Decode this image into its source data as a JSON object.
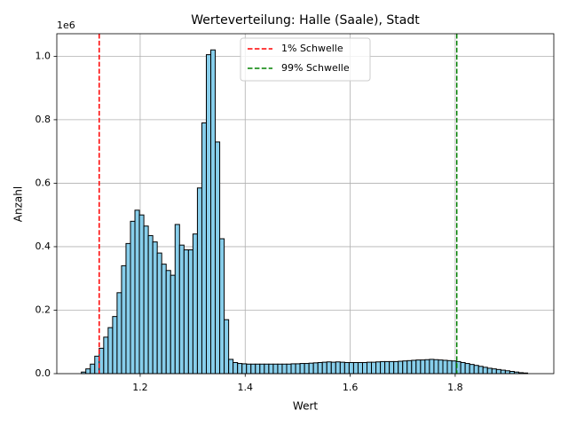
{
  "chart_data": {
    "type": "histogram",
    "title": "Werteverteilung: Halle (Saale), Stadt",
    "x_label": "Wert",
    "y_label": "Anzahl",
    "y_offset_label": "1e6",
    "bins": [
      1.088,
      1.0965,
      1.105,
      1.1135,
      1.122,
      1.1305,
      1.139,
      1.1475,
      1.156,
      1.1645,
      1.173,
      1.1815,
      1.19,
      1.1985,
      1.207,
      1.2155,
      1.224,
      1.2325,
      1.241,
      1.2495,
      1.258,
      1.2665,
      1.275,
      1.2835,
      1.292,
      1.3005,
      1.309,
      1.3175,
      1.326,
      1.3345,
      1.343,
      1.3515,
      1.36,
      1.3685,
      1.377,
      1.3855,
      1.394,
      1.4025,
      1.411,
      1.4195,
      1.428,
      1.4365,
      1.445,
      1.4535,
      1.462,
      1.4705,
      1.479,
      1.4875,
      1.496,
      1.5045,
      1.513,
      1.5215,
      1.53,
      1.5385,
      1.547,
      1.5555,
      1.564,
      1.5725,
      1.581,
      1.5895,
      1.598,
      1.6065,
      1.615,
      1.6235,
      1.632,
      1.6405,
      1.649,
      1.6575,
      1.666,
      1.6745,
      1.683,
      1.6915,
      1.7,
      1.7085,
      1.717,
      1.7255,
      1.734,
      1.7425,
      1.751,
      1.7595,
      1.768,
      1.7765,
      1.785,
      1.7935,
      1.802,
      1.8105,
      1.819,
      1.8275,
      1.836,
      1.8445,
      1.853,
      1.8615,
      1.87,
      1.8785,
      1.887,
      1.8955,
      1.904,
      1.9125,
      1.921,
      1.9295,
      1.938
    ],
    "values": [
      5000,
      15000,
      30000,
      55000,
      80000,
      115000,
      145000,
      180000,
      255000,
      340000,
      410000,
      480000,
      515000,
      500000,
      465000,
      435000,
      415000,
      380000,
      345000,
      325000,
      310000,
      470000,
      405000,
      390000,
      390000,
      440000,
      585000,
      790000,
      1005000,
      1020000,
      730000,
      425000,
      170000,
      45000,
      35000,
      32000,
      31000,
      30000,
      30000,
      30000,
      30000,
      30000,
      30000,
      30000,
      30000,
      30000,
      30000,
      31000,
      31000,
      32000,
      32000,
      33000,
      34000,
      35000,
      36000,
      37000,
      36000,
      37000,
      36000,
      35000,
      35000,
      35000,
      35000,
      35000,
      36000,
      36000,
      37000,
      38000,
      38000,
      38000,
      38000,
      39000,
      40000,
      41000,
      42000,
      43000,
      43000,
      44000,
      45000,
      44000,
      43000,
      42000,
      41000,
      40000,
      38000,
      35000,
      32000,
      29000,
      26000,
      23000,
      20000,
      17000,
      15000,
      13000,
      11000,
      9000,
      7000,
      5000,
      3000,
      2000
    ],
    "color": "#87ceeb",
    "edgecolor": "#000000",
    "thresholds": [
      {
        "name": "1% Schwelle",
        "value": 1.122,
        "color": "#ff0000"
      },
      {
        "name": "99% Schwelle",
        "value": 1.803,
        "color": "#008000"
      }
    ],
    "xlim": [
      1.0412,
      1.9878
    ],
    "ylim": [
      0,
      1071000
    ],
    "xticks": [
      1.2,
      1.4,
      1.6,
      1.8
    ],
    "yticks": [
      {
        "value": 0,
        "label": "0.0"
      },
      {
        "value": 200000,
        "label": "0.2"
      },
      {
        "value": 400000,
        "label": "0.4"
      },
      {
        "value": 600000,
        "label": "0.6"
      },
      {
        "value": 800000,
        "label": "0.8"
      },
      {
        "value": 1000000,
        "label": "1.0"
      }
    ],
    "grid": true,
    "legend": "upper center"
  }
}
